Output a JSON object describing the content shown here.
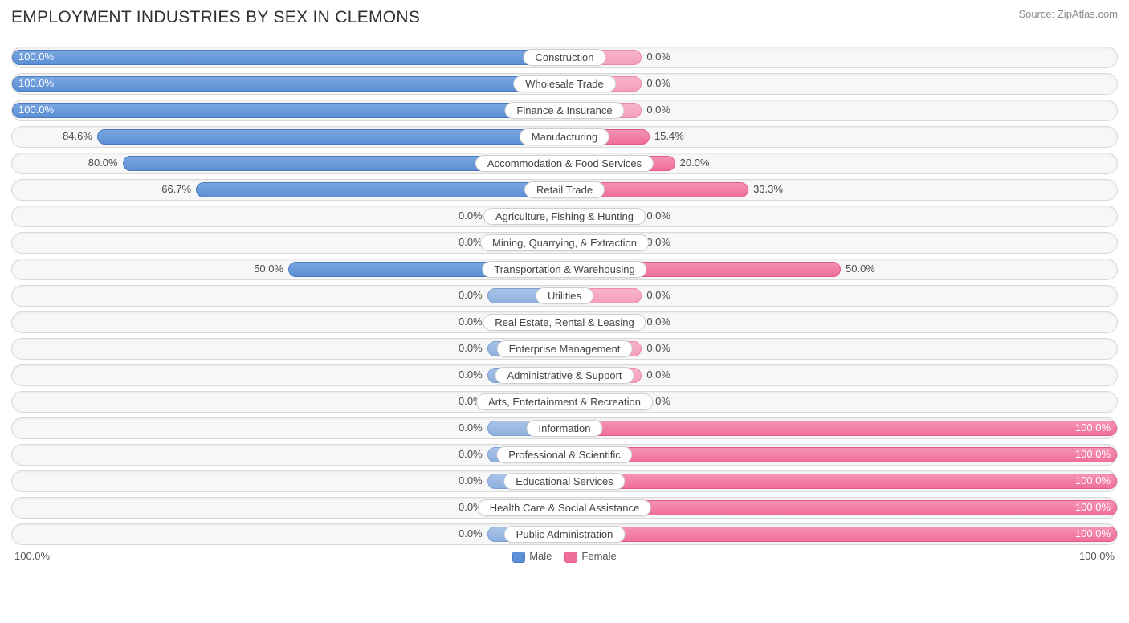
{
  "title": "EMPLOYMENT INDUSTRIES BY SEX IN CLEMONS",
  "source": "Source: ZipAtlas.com",
  "chart": {
    "type": "diverging-bar",
    "axis_left": "100.0%",
    "axis_right": "100.0%",
    "legend": {
      "male": "Male",
      "female": "Female"
    },
    "colors": {
      "male_bar": "#5b8fd6",
      "male_bar_dim": "#8fb0de",
      "female_bar": "#ef6f98",
      "female_bar_dim": "#f5a0bb",
      "track_bg": "#f7f7f7",
      "track_border": "#d9d9d9",
      "label_bg": "#ffffff",
      "label_border": "#cfcfcf",
      "text": "#4a4a4a"
    },
    "min_bar_pct": 14,
    "rows": [
      {
        "label": "Construction",
        "male": 100.0,
        "female": 0.0,
        "male_txt": "100.0%",
        "female_txt": "0.0%",
        "female_dim": true
      },
      {
        "label": "Wholesale Trade",
        "male": 100.0,
        "female": 0.0,
        "male_txt": "100.0%",
        "female_txt": "0.0%",
        "female_dim": true
      },
      {
        "label": "Finance & Insurance",
        "male": 100.0,
        "female": 0.0,
        "male_txt": "100.0%",
        "female_txt": "0.0%",
        "female_dim": true
      },
      {
        "label": "Manufacturing",
        "male": 84.6,
        "female": 15.4,
        "male_txt": "84.6%",
        "female_txt": "15.4%"
      },
      {
        "label": "Accommodation & Food Services",
        "male": 80.0,
        "female": 20.0,
        "male_txt": "80.0%",
        "female_txt": "20.0%"
      },
      {
        "label": "Retail Trade",
        "male": 66.7,
        "female": 33.3,
        "male_txt": "66.7%",
        "female_txt": "33.3%"
      },
      {
        "label": "Agriculture, Fishing & Hunting",
        "male": 0.0,
        "female": 0.0,
        "male_txt": "0.0%",
        "female_txt": "0.0%",
        "male_dim": true,
        "female_dim": true
      },
      {
        "label": "Mining, Quarrying, & Extraction",
        "male": 0.0,
        "female": 0.0,
        "male_txt": "0.0%",
        "female_txt": "0.0%",
        "male_dim": true,
        "female_dim": true
      },
      {
        "label": "Transportation & Warehousing",
        "male": 50.0,
        "female": 50.0,
        "male_txt": "50.0%",
        "female_txt": "50.0%"
      },
      {
        "label": "Utilities",
        "male": 0.0,
        "female": 0.0,
        "male_txt": "0.0%",
        "female_txt": "0.0%",
        "male_dim": true,
        "female_dim": true
      },
      {
        "label": "Real Estate, Rental & Leasing",
        "male": 0.0,
        "female": 0.0,
        "male_txt": "0.0%",
        "female_txt": "0.0%",
        "male_dim": true,
        "female_dim": true
      },
      {
        "label": "Enterprise Management",
        "male": 0.0,
        "female": 0.0,
        "male_txt": "0.0%",
        "female_txt": "0.0%",
        "male_dim": true,
        "female_dim": true
      },
      {
        "label": "Administrative & Support",
        "male": 0.0,
        "female": 0.0,
        "male_txt": "0.0%",
        "female_txt": "0.0%",
        "male_dim": true,
        "female_dim": true
      },
      {
        "label": "Arts, Entertainment & Recreation",
        "male": 0.0,
        "female": 0.0,
        "male_txt": "0.0%",
        "female_txt": "0.0%",
        "male_dim": true,
        "female_dim": true
      },
      {
        "label": "Information",
        "male": 0.0,
        "female": 100.0,
        "male_txt": "0.0%",
        "female_txt": "100.0%",
        "male_dim": true
      },
      {
        "label": "Professional & Scientific",
        "male": 0.0,
        "female": 100.0,
        "male_txt": "0.0%",
        "female_txt": "100.0%",
        "male_dim": true
      },
      {
        "label": "Educational Services",
        "male": 0.0,
        "female": 100.0,
        "male_txt": "0.0%",
        "female_txt": "100.0%",
        "male_dim": true
      },
      {
        "label": "Health Care & Social Assistance",
        "male": 0.0,
        "female": 100.0,
        "male_txt": "0.0%",
        "female_txt": "100.0%",
        "male_dim": true
      },
      {
        "label": "Public Administration",
        "male": 0.0,
        "female": 100.0,
        "male_txt": "0.0%",
        "female_txt": "100.0%",
        "male_dim": true
      }
    ]
  }
}
